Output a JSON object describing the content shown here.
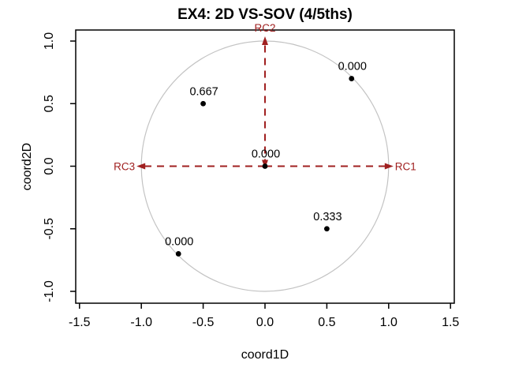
{
  "chart_data": {
    "type": "scatter",
    "title": "EX4: 2D VS-SOV (4/5ths)",
    "xlabel": "coord1D",
    "ylabel": "coord2D",
    "xlim": [
      -1.54,
      1.54
    ],
    "ylim": [
      -1.1,
      1.1
    ],
    "grid": false,
    "legend": null,
    "x_ticks": [
      {
        "value": -1.5,
        "label": "-1.5"
      },
      {
        "value": -1.0,
        "label": "-1.0"
      },
      {
        "value": -0.5,
        "label": "-0.5"
      },
      {
        "value": 0.0,
        "label": "0.0"
      },
      {
        "value": 0.5,
        "label": "0.5"
      },
      {
        "value": 1.0,
        "label": "1.0"
      },
      {
        "value": 1.5,
        "label": "1.5"
      }
    ],
    "y_ticks": [
      {
        "value": -1.0,
        "label": "-1.0"
      },
      {
        "value": -0.5,
        "label": "-0.5"
      },
      {
        "value": 0.0,
        "label": "0.0"
      },
      {
        "value": 0.5,
        "label": "0.5"
      },
      {
        "value": 1.0,
        "label": "1.0"
      }
    ],
    "unit_circle": {
      "cx": 0,
      "cy": 0,
      "radius": 1
    },
    "points": [
      {
        "x": 0.7,
        "y": 0.7,
        "label": "0.000"
      },
      {
        "x": -0.5,
        "y": 0.5,
        "label": "0.667"
      },
      {
        "x": 0.0,
        "y": 0.0,
        "label": "0.000"
      },
      {
        "x": 0.5,
        "y": -0.5,
        "label": "0.333"
      },
      {
        "x": -0.7,
        "y": -0.7,
        "label": "0.000"
      }
    ],
    "arrows": [
      {
        "x1": 0,
        "y1": 0,
        "x2": 1,
        "y2": 0,
        "label": "RC1",
        "label_side": "right",
        "heads": "end"
      },
      {
        "x1": 0,
        "y1": 0,
        "x2": 0,
        "y2": 1,
        "label": "RC2",
        "label_side": "top",
        "heads": "both"
      },
      {
        "x1": 0,
        "y1": 0,
        "x2": -1,
        "y2": 0,
        "label": "RC3",
        "label_side": "left",
        "heads": "end"
      }
    ],
    "styles": {
      "accent": "#A02020",
      "circle_color": "#C3C3C3",
      "point_color": "#000000",
      "axis_color": "#000000",
      "dash_pattern": "9,7"
    }
  }
}
